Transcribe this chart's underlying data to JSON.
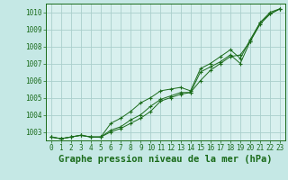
{
  "background_color": "#c5e8e5",
  "plot_bg_color": "#d8f0ee",
  "grid_color": "#aacfcc",
  "line_color": "#1a6b1a",
  "marker_color": "#1a6b1a",
  "xlabel": "Graphe pression niveau de la mer (hPa)",
  "xlabel_fontsize": 7.5,
  "ylim": [
    1002.5,
    1010.5
  ],
  "xlim": [
    -0.5,
    23.5
  ],
  "yticks": [
    1003,
    1004,
    1005,
    1006,
    1007,
    1008,
    1009,
    1010
  ],
  "xticks": [
    0,
    1,
    2,
    3,
    4,
    5,
    6,
    7,
    8,
    9,
    10,
    11,
    12,
    13,
    14,
    15,
    16,
    17,
    18,
    19,
    20,
    21,
    22,
    23
  ],
  "series": [
    [
      1002.7,
      1002.6,
      1002.7,
      1002.8,
      1002.7,
      1002.7,
      1003.0,
      1003.2,
      1003.5,
      1003.8,
      1004.2,
      1004.8,
      1005.0,
      1005.2,
      1005.3,
      1006.0,
      1006.6,
      1007.0,
      1007.4,
      1007.5,
      1008.3,
      1009.4,
      1009.9,
      1010.2
    ],
    [
      1002.7,
      1002.6,
      1002.7,
      1002.8,
      1002.7,
      1002.7,
      1003.1,
      1003.3,
      1003.7,
      1004.0,
      1004.5,
      1004.9,
      1005.1,
      1005.3,
      1005.3,
      1006.5,
      1006.8,
      1007.1,
      1007.5,
      1007.0,
      1008.3,
      1009.3,
      1009.9,
      1010.2
    ],
    [
      1002.7,
      1002.6,
      1002.7,
      1002.8,
      1002.7,
      1002.7,
      1003.5,
      1003.8,
      1004.2,
      1004.7,
      1005.0,
      1005.4,
      1005.5,
      1005.6,
      1005.4,
      1006.7,
      1007.0,
      1007.4,
      1007.8,
      1007.3,
      1008.4,
      1009.4,
      1010.0,
      1010.2
    ]
  ]
}
